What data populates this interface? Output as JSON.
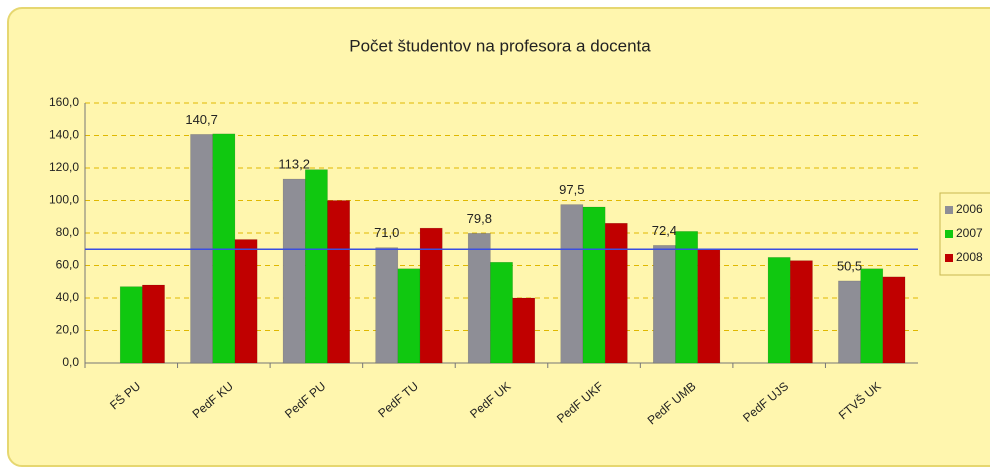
{
  "chart_data": {
    "type": "bar",
    "title": "Počet študentov na profesora a docenta",
    "categories": [
      "FŠ PU",
      "PedF KU",
      "PedF PU",
      "PedF  TU",
      "PedF  UK",
      "PedF UKF",
      "PedF UMB",
      "PedF UJS",
      "FTVŠ UK"
    ],
    "series": [
      {
        "name": "2006",
        "color": "#8e8e96",
        "values": [
          null,
          140.7,
          113.2,
          71.0,
          79.8,
          97.5,
          72.4,
          null,
          50.5
        ],
        "value_labels": [
          null,
          "140,7",
          "113,2",
          "71,0",
          "79,8",
          "97,5",
          "72,4",
          null,
          "50,5"
        ]
      },
      {
        "name": "2007",
        "color": "#10c810",
        "values": [
          47,
          141,
          119,
          58,
          62,
          96,
          81,
          65,
          58
        ]
      },
      {
        "name": "2008",
        "color": "#c00000",
        "values": [
          48,
          76,
          100,
          83,
          40,
          86,
          70,
          63,
          53
        ]
      }
    ],
    "reference_line": {
      "value": 70,
      "color": "#3a4ee0"
    },
    "ylim": [
      0,
      160
    ],
    "yticks": [
      {
        "value": 0,
        "label": "0,0"
      },
      {
        "value": 20,
        "label": "20,0"
      },
      {
        "value": 40,
        "label": "40,0"
      },
      {
        "value": 60,
        "label": "60,0"
      },
      {
        "value": 80,
        "label": "80,0"
      },
      {
        "value": 100,
        "label": "100,0"
      },
      {
        "value": 120,
        "label": "120,0"
      },
      {
        "value": 140,
        "label": "140,0"
      },
      {
        "value": 160,
        "label": "160,0"
      }
    ],
    "grid": true,
    "legend": "right"
  }
}
